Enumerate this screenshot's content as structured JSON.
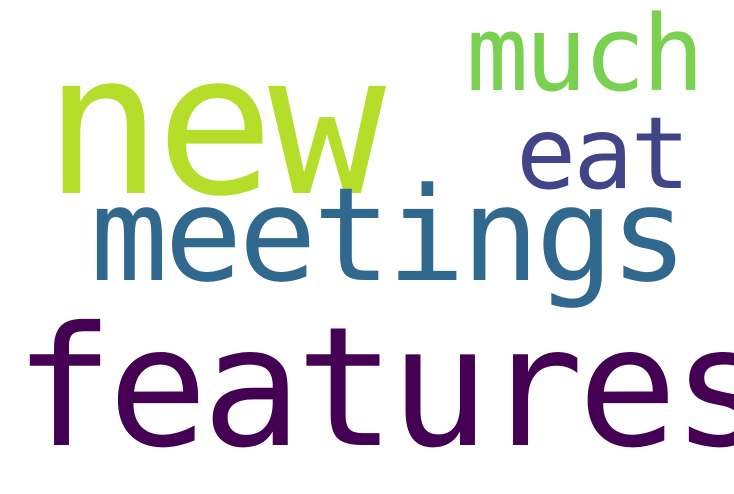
{
  "words": {
    "new": {
      "text": "new",
      "color": "#b5de2b"
    },
    "much": {
      "text": "much",
      "color": "#7ad151"
    },
    "eat": {
      "text": "eat",
      "color": "#414487"
    },
    "meetings": {
      "text": "meetings",
      "color": "#31688e"
    },
    "features": {
      "text": "features",
      "color": "#440154"
    }
  }
}
